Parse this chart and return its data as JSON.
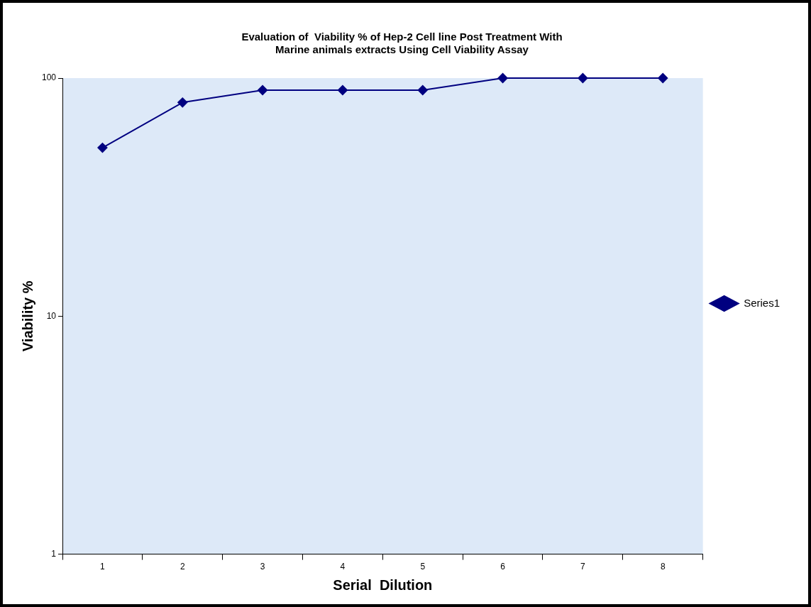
{
  "chart_data": {
    "type": "line",
    "title": "Evaluation of  Viability % of Hep-2 Cell line Post Treatment With\nMarine animals extracts Using Cell Viability Assay",
    "xlabel": "Serial  Dilution",
    "ylabel": "Viability %",
    "categories": [
      "1",
      "2",
      "3",
      "4",
      "5",
      "6",
      "7",
      "8"
    ],
    "series": [
      {
        "name": "Series1",
        "color": "#000080",
        "values": [
          51,
          79,
          89,
          89,
          89,
          100,
          100,
          100
        ]
      }
    ],
    "log": "y",
    "ylim": [
      1,
      100
    ],
    "yticks": [
      1,
      10,
      100
    ],
    "grid": false,
    "legend": "right",
    "marker": "diamond",
    "line_style": "solid"
  }
}
